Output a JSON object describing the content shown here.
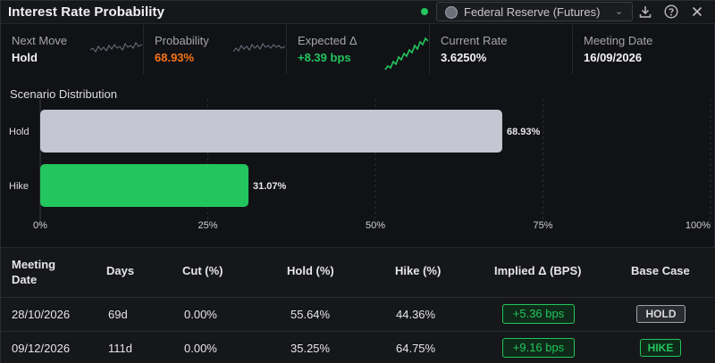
{
  "header": {
    "title": "Interest Rate Probability",
    "source_label": "Federal Reserve (Futures)",
    "icons": [
      "download-icon",
      "help-icon",
      "close-icon"
    ]
  },
  "stats": [
    {
      "label": "Next Move",
      "value": "Hold",
      "value_color": "#f2f2f2",
      "sparkline": "gray"
    },
    {
      "label": "Probability",
      "value": "68.93%",
      "value_color": "#f97316",
      "sparkline": "gray"
    },
    {
      "label": "Expected Δ",
      "value": "+8.39 bps",
      "value_color": "#22c55e",
      "sparkline": "green"
    },
    {
      "label": "Current Rate",
      "value": "3.6250%",
      "value_color": "#f2f2f2"
    },
    {
      "label": "Meeting Date",
      "value": "16/09/2026",
      "value_color": "#f2f2f2"
    }
  ],
  "chart": {
    "title": "Scenario Distribution"
  },
  "chart_data": {
    "type": "bar",
    "orientation": "horizontal",
    "categories": [
      "Hold",
      "Hike"
    ],
    "values": [
      68.93,
      31.07
    ],
    "value_labels": [
      "68.93%",
      "31.07%"
    ],
    "colors": [
      "#c4c7d1",
      "#22c55e"
    ],
    "xlim": [
      0,
      100
    ],
    "xticks": [
      "0%",
      "25%",
      "50%",
      "75%",
      "100%"
    ],
    "grid": true
  },
  "table": {
    "headers": [
      "Meeting Date",
      "Days",
      "Cut (%)",
      "Hold (%)",
      "Hike (%)",
      "Implied Δ (BPS)",
      "Base Case"
    ],
    "rows": [
      {
        "date": "28/10/2026",
        "days": "69d",
        "cut": "0.00%",
        "hold": "55.64%",
        "hike": "44.36%",
        "implied": "+5.36 bps",
        "base": "HOLD"
      },
      {
        "date": "09/12/2026",
        "days": "111d",
        "cut": "0.00%",
        "hold": "35.25%",
        "hike": "64.75%",
        "implied": "+9.16 bps",
        "base": "HIKE"
      }
    ]
  },
  "colors": {
    "accent_green": "#22c55e",
    "accent_orange": "#f97316",
    "hold_bar": "#c4c7d1"
  }
}
